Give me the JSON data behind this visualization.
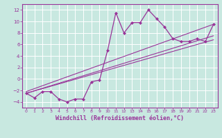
{
  "background_color": "#c8e8e0",
  "grid_color": "#b0d8d0",
  "line_color": "#993399",
  "marker_color": "#993399",
  "xlabel": "Windchill (Refroidissement éolien,°C)",
  "xlabel_fontsize": 6.0,
  "xlim": [
    -0.5,
    23.5
  ],
  "ylim": [
    -5.0,
    13.0
  ],
  "yticks": [
    -4,
    -2,
    0,
    2,
    4,
    6,
    8,
    10,
    12
  ],
  "xticks": [
    0,
    1,
    2,
    3,
    4,
    5,
    6,
    7,
    8,
    9,
    10,
    11,
    12,
    13,
    14,
    15,
    16,
    17,
    18,
    19,
    20,
    21,
    22,
    23
  ],
  "main_line_x": [
    0,
    1,
    2,
    3,
    4,
    5,
    6,
    7,
    8,
    9,
    10,
    11,
    12,
    13,
    14,
    15,
    16,
    17,
    18,
    19,
    20,
    21,
    22,
    23
  ],
  "main_line_y": [
    -2.5,
    -3.3,
    -2.2,
    -2.2,
    -3.5,
    -4.0,
    -3.5,
    -3.5,
    -0.5,
    -0.2,
    5.0,
    11.5,
    8.0,
    9.8,
    9.8,
    12.0,
    10.5,
    9.0,
    7.0,
    6.5,
    6.5,
    7.0,
    6.5,
    9.5
  ],
  "line2_x": [
    0,
    23
  ],
  "line2_y": [
    -2.5,
    6.8
  ],
  "line3_x": [
    0,
    23
  ],
  "line3_y": [
    -2.5,
    7.5
  ],
  "line4_x": [
    0,
    23
  ],
  "line4_y": [
    -2.2,
    9.5
  ]
}
